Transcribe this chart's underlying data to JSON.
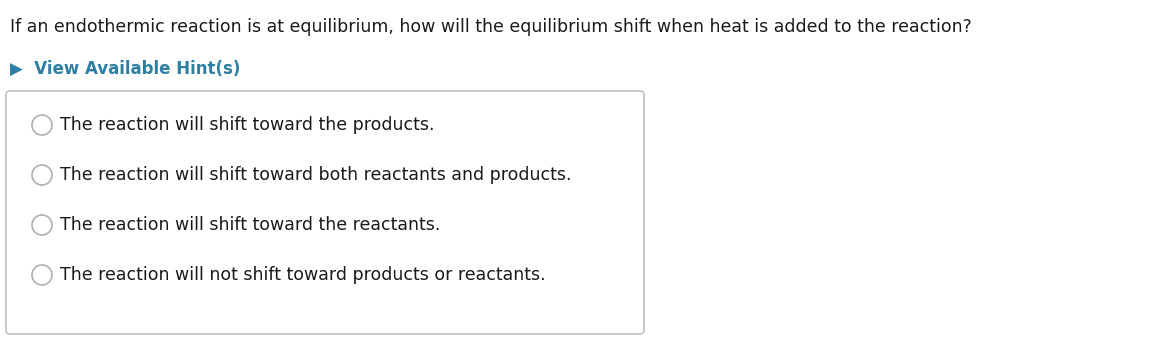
{
  "question": "If an endothermic reaction is at equilibrium, how will the equilibrium shift when heat is added to the reaction?",
  "hint_label": "▶  View Available Hint(s)",
  "hint_color": "#2e7fa3",
  "options": [
    "The reaction will shift toward the products.",
    "The reaction will shift toward both reactants and products.",
    "The reaction will shift toward the reactants.",
    "The reaction will not shift toward products or reactants."
  ],
  "bg_color": "#ffffff",
  "question_color": "#1a1a1a",
  "option_color": "#1a1a1a",
  "box_edge_color": "#c0c0c0",
  "box_bg_color": "#ffffff",
  "radio_edge_color": "#b0b0b0",
  "radio_face_color": "#ffffff",
  "question_fontsize": 12.5,
  "hint_fontsize": 12,
  "option_fontsize": 12.5
}
